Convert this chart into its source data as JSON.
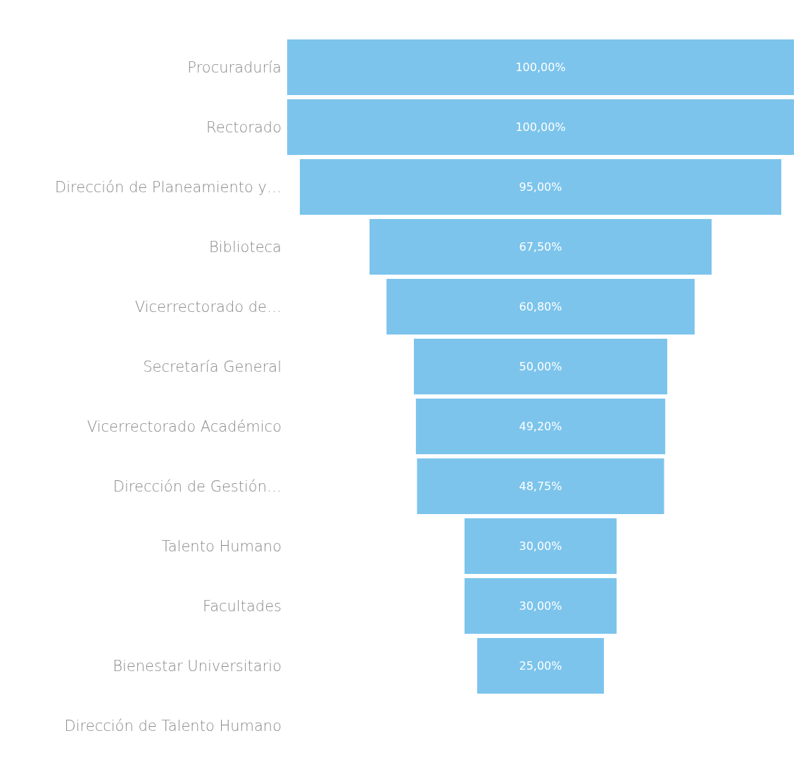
{
  "chart_data": {
    "type": "other",
    "categories": [
      "Procuraduría",
      "Rectorado",
      "Dirección de Planeamiento y…",
      "Biblioteca",
      "Vicerrectorado de…",
      "Secretaría General",
      "Vicerrectorado Académico",
      "Dirección de Gestión…",
      "Talento Humano",
      "Facultades",
      "Bienestar Universitario",
      "Dirección de Talento Humano"
    ],
    "values": [
      100,
      100,
      95,
      67.5,
      60.8,
      50,
      49.2,
      48.75,
      30,
      30,
      25,
      null
    ],
    "value_labels": [
      "100,00%",
      "100,00%",
      "95,00%",
      "67,50%",
      "60,80%",
      "50,00%",
      "49,20%",
      "48,75%",
      "30,00%",
      "30,00%",
      "25,00%",
      null
    ],
    "color": "#7cc4ec"
  }
}
